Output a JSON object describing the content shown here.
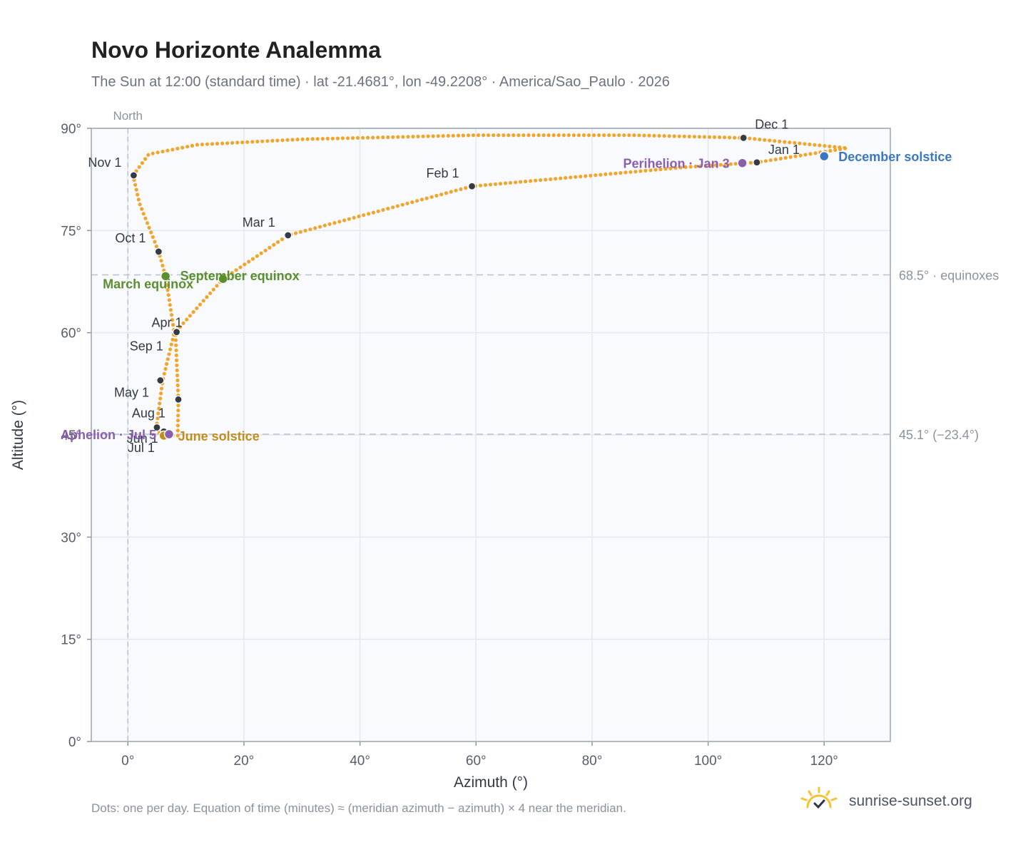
{
  "title": "Novo Horizonte Analemma",
  "subtitle": "The Sun at 12:00 (standard time) · lat -21.4681°, lon -49.2208° · America/Sao_Paulo · 2026",
  "footnote": "Dots: one per day. Equation of time (minutes) ≈ (meridian azimuth − azimuth) × 4 near the meridian.",
  "brand": "sunrise-sunset.org",
  "colors": {
    "path": "#f2a52a",
    "month": "#353b45",
    "equinox": "#5a8f2e",
    "june": "#c28e1a",
    "december": "#3b78c0",
    "apsis": "#8a5fae",
    "plot_bg": "#f8fafd",
    "grid": "#e3e8ee",
    "ref": "#b7c3cf"
  },
  "chart_data": {
    "type": "scatter",
    "xlabel": "Azimuth (°)",
    "ylabel": "Altitude (°)",
    "xlim": [
      -6.3,
      131.4
    ],
    "ylim": [
      0,
      90
    ],
    "xticks": [
      {
        "v": 0,
        "label": "0°"
      },
      {
        "v": 20,
        "label": "20°"
      },
      {
        "v": 40,
        "label": "40°"
      },
      {
        "v": 60,
        "label": "60°"
      },
      {
        "v": 80,
        "label": "80°"
      },
      {
        "v": 100,
        "label": "100°"
      },
      {
        "v": 120,
        "label": "120°"
      }
    ],
    "yticks": [
      {
        "v": 0,
        "label": "0°"
      },
      {
        "v": 15,
        "label": "15°"
      },
      {
        "v": 30,
        "label": "30°"
      },
      {
        "v": 45,
        "label": "45°"
      },
      {
        "v": 60,
        "label": "60°"
      },
      {
        "v": 75,
        "label": "75°"
      },
      {
        "v": 90,
        "label": "90°"
      }
    ],
    "north_line": {
      "x": 0,
      "label": "North"
    },
    "reference_lines": [
      {
        "y": 68.5,
        "label": "68.5° · equinoxes"
      },
      {
        "y": 45.1,
        "label": "45.1° (−23.4°)"
      }
    ],
    "path_anchors": [
      {
        "x": 8.6,
        "y": 44.9
      },
      {
        "x": 8.7,
        "y": 50.2
      },
      {
        "x": 8.2,
        "y": 60.1
      },
      {
        "x": 16.4,
        "y": 67.9
      },
      {
        "x": 27.6,
        "y": 74.3
      },
      {
        "x": 59.3,
        "y": 81.5
      },
      {
        "x": 96.0,
        "y": 84.3
      },
      {
        "x": 108.4,
        "y": 85.0
      },
      {
        "x": 124.0,
        "y": 87.1
      },
      {
        "x": 106.1,
        "y": 88.6
      },
      {
        "x": 87.0,
        "y": 89.0
      },
      {
        "x": 60.0,
        "y": 89.0
      },
      {
        "x": 30.0,
        "y": 88.4
      },
      {
        "x": 12.0,
        "y": 87.6
      },
      {
        "x": 3.6,
        "y": 86.2
      },
      {
        "x": 0.9,
        "y": 83.1
      },
      {
        "x": 2.0,
        "y": 79.0
      },
      {
        "x": 5.3,
        "y": 71.9
      },
      {
        "x": 6.5,
        "y": 68.3
      },
      {
        "x": 8.0,
        "y": 60.0
      },
      {
        "x": 6.0,
        "y": 53.0
      },
      {
        "x": 4.9,
        "y": 46.0
      },
      {
        "x": 5.8,
        "y": 44.9
      },
      {
        "x": 8.6,
        "y": 44.9
      }
    ],
    "month_markers": [
      {
        "label": "Jan 1",
        "x": 108.4,
        "y": 85.0,
        "anchor": "start",
        "dx": 16,
        "dy": -12
      },
      {
        "label": "Feb 1",
        "x": 59.3,
        "y": 81.5,
        "anchor": "end",
        "dx": -18,
        "dy": -12
      },
      {
        "label": "Mar 1",
        "x": 27.6,
        "y": 74.3,
        "anchor": "end",
        "dx": -18,
        "dy": -12
      },
      {
        "label": "Apr 1",
        "x": 8.4,
        "y": 60.1,
        "anchor": "end",
        "dx": 8,
        "dy": -7
      },
      {
        "label": "May 1",
        "x": 8.7,
        "y": 50.2,
        "anchor": "end",
        "dx": -41,
        "dy": -4
      },
      {
        "label": "Jun 1",
        "x": 6.2,
        "y": 45.5,
        "anchor": "end",
        "dx": -8,
        "dy": 16
      },
      {
        "label": "Jul 1",
        "x": 6.1,
        "y": 44.9,
        "anchor": "end",
        "dx": -12,
        "dy": 23
      },
      {
        "label": "Aug 1",
        "x": 5.0,
        "y": 46.1,
        "anchor": "end",
        "dx": 12,
        "dy": -14
      },
      {
        "label": "Sep 1",
        "x": 5.6,
        "y": 53.0,
        "anchor": "end",
        "dx": 4,
        "dy": -42
      },
      {
        "label": "Oct 1",
        "x": 5.3,
        "y": 71.9,
        "anchor": "end",
        "dx": -18,
        "dy": -13
      },
      {
        "label": "Nov 1",
        "x": 1.0,
        "y": 83.1,
        "anchor": "end",
        "dx": -17,
        "dy": -12
      },
      {
        "label": "Dec 1",
        "x": 106.1,
        "y": 88.6,
        "anchor": "start",
        "dx": 16,
        "dy": -13
      }
    ],
    "events": [
      {
        "label": "March equinox",
        "x": 6.5,
        "y": 68.3,
        "color": "#5a8f2e",
        "anchor": "start",
        "dx": -88,
        "dy": 17
      },
      {
        "label": "September equinox",
        "x": 16.4,
        "y": 67.9,
        "color": "#5a8f2e",
        "anchor": "start",
        "dx": -60,
        "dy": 2
      },
      {
        "label": "June solstice",
        "x": 6.2,
        "y": 44.9,
        "color": "#c28e1a",
        "anchor": "start",
        "dx": 20,
        "dy": 7
      },
      {
        "label": "December solstice",
        "x": 120.0,
        "y": 85.9,
        "color": "#3b78c0",
        "anchor": "start",
        "dx": 20,
        "dy": 7
      },
      {
        "label": "Perihelion · Jan 3",
        "x": 105.9,
        "y": 84.9,
        "color": "#8a5fae",
        "anchor": "end",
        "dx": -18,
        "dy": 7
      },
      {
        "label": "Aphelion · Jul 5",
        "x": 7.1,
        "y": 45.1,
        "color": "#8a5fae",
        "anchor": "end",
        "dx": -18,
        "dy": 7
      }
    ]
  }
}
